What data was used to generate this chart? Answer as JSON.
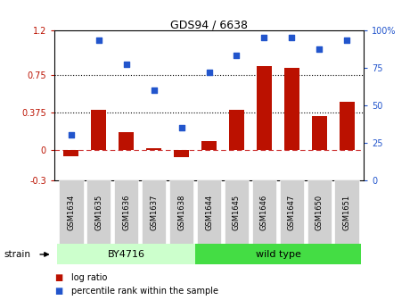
{
  "title": "GDS94 / 6638",
  "categories": [
    "GSM1634",
    "GSM1635",
    "GSM1636",
    "GSM1637",
    "GSM1638",
    "GSM1644",
    "GSM1645",
    "GSM1646",
    "GSM1647",
    "GSM1650",
    "GSM1651"
  ],
  "log_ratio": [
    -0.06,
    0.4,
    0.18,
    0.02,
    -0.07,
    0.09,
    0.4,
    0.84,
    0.82,
    0.34,
    0.48
  ],
  "percentile_rank": [
    30,
    93,
    77,
    60,
    35,
    72,
    83,
    95,
    95,
    87,
    93
  ],
  "bar_color": "#bb1100",
  "dot_color": "#2255cc",
  "ylim_left": [
    -0.3,
    1.2
  ],
  "ylim_right": [
    0,
    100
  ],
  "yticks_left": [
    -0.3,
    0,
    0.375,
    0.75,
    1.2
  ],
  "yticks_right": [
    0,
    25,
    50,
    75,
    100
  ],
  "ytick_labels_left": [
    "-0.3",
    "0",
    "0.375",
    "0.75",
    "1.2"
  ],
  "ytick_labels_right": [
    "0",
    "25",
    "50",
    "75",
    "100%"
  ],
  "hlines": [
    0.375,
    0.75
  ],
  "zero_line": 0.0,
  "strain_groups": [
    {
      "label": "BY4716",
      "start": 0,
      "end": 5,
      "color": "#ccffcc"
    },
    {
      "label": "wild type",
      "start": 5,
      "end": 11,
      "color": "#44dd44"
    }
  ],
  "strain_label": "strain",
  "legend_bar_label": "log ratio",
  "legend_dot_label": "percentile rank within the sample",
  "background_color": "#ffffff"
}
